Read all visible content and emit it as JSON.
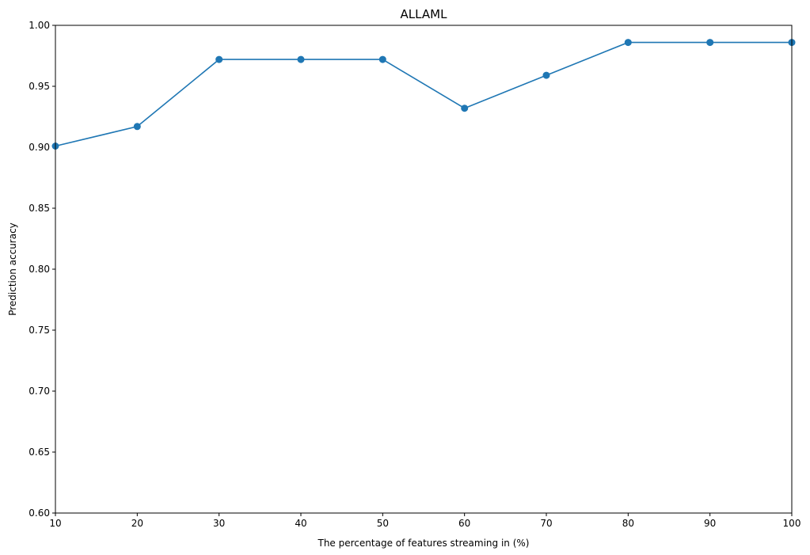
{
  "chart_data": {
    "type": "line",
    "title": "ALLAML",
    "xlabel": "The percentage of features streaming in (%)",
    "ylabel": "Prediction accuracy",
    "xlim": [
      10,
      100
    ],
    "ylim": [
      0.6,
      1.0
    ],
    "xticks": [
      "10",
      "20",
      "30",
      "40",
      "50",
      "60",
      "70",
      "80",
      "90",
      "100"
    ],
    "yticks": [
      "0.60",
      "0.65",
      "0.70",
      "0.75",
      "0.80",
      "0.85",
      "0.90",
      "0.95",
      "1.00"
    ],
    "grid": false,
    "color": "#1f77b4",
    "x": [
      10,
      20,
      30,
      40,
      50,
      60,
      70,
      80,
      90,
      100
    ],
    "y": [
      0.901,
      0.917,
      0.972,
      0.972,
      0.972,
      0.932,
      0.959,
      0.986,
      0.986,
      0.986
    ]
  }
}
